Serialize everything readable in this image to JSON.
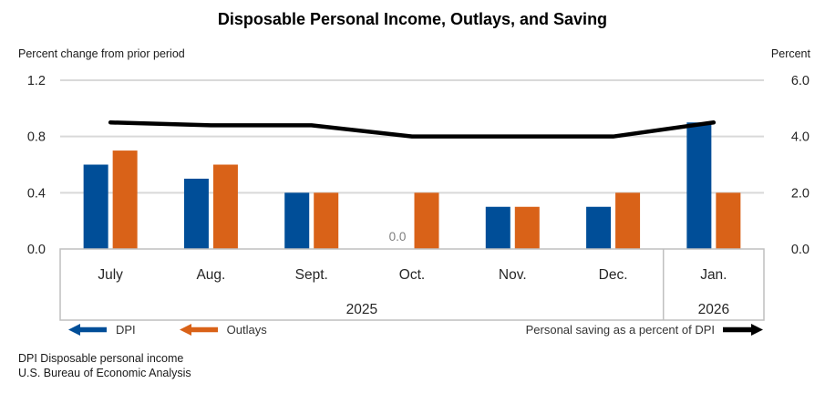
{
  "title": "Disposable Personal Income, Outlays, and Saving",
  "left_axis": {
    "caption": "Percent change from prior period",
    "ticks": [
      "1.2",
      "0.8",
      "0.4",
      "0.0"
    ]
  },
  "right_axis": {
    "caption": "Percent",
    "ticks": [
      "6.0",
      "4.0",
      "2.0",
      "0.0"
    ]
  },
  "chart_data": {
    "type": "bar+line combo",
    "categories": [
      "July",
      "Aug.",
      "Sept.",
      "Oct.",
      "Nov.",
      "Dec.",
      "Jan."
    ],
    "year_groups": [
      {
        "label": "2025",
        "span": 6
      },
      {
        "label": "2026",
        "span": 1
      }
    ],
    "series": [
      {
        "name": "DPI",
        "type": "bar",
        "axis": "left",
        "color": "#004E98",
        "values": [
          0.6,
          0.5,
          0.4,
          0.0,
          0.3,
          0.3,
          0.9
        ]
      },
      {
        "name": "Outlays",
        "type": "bar",
        "axis": "left",
        "color": "#D96218",
        "values": [
          0.7,
          0.6,
          0.4,
          0.4,
          0.3,
          0.4,
          0.4
        ]
      },
      {
        "name": "Personal saving as a percent of DPI",
        "type": "line",
        "axis": "right",
        "color": "#000000",
        "values": [
          4.5,
          4.4,
          4.4,
          4.0,
          4.0,
          4.0,
          4.5
        ]
      }
    ],
    "ylim_left": [
      0,
      1.2
    ],
    "ylim_right": [
      0,
      6.0
    ],
    "grid": true,
    "legend_position": "bottom",
    "zero_value_label": "0.0"
  },
  "legend": {
    "dpi_label": "DPI",
    "outlays_label": "Outlays",
    "saving_label": "Personal saving as a percent of DPI"
  },
  "footnotes": [
    "DPI Disposable personal income",
    "U.S. Bureau of Economic Analysis"
  ],
  "colors": {
    "dpi": "#004E98",
    "outlays": "#D96218",
    "saving_line": "#000000",
    "gridline": "#D9D9D9",
    "axis_box": "#BFBFBF",
    "zero_label": "#7F7F7F"
  }
}
